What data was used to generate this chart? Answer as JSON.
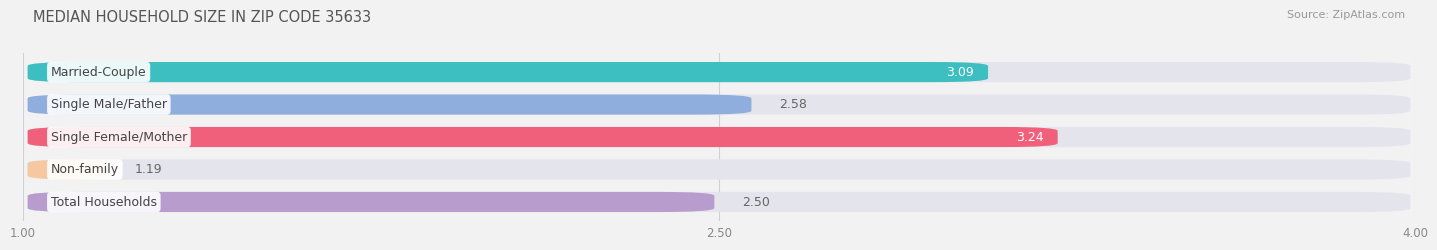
{
  "title": "MEDIAN HOUSEHOLD SIZE IN ZIP CODE 35633",
  "source": "Source: ZipAtlas.com",
  "categories": [
    "Married-Couple",
    "Single Male/Father",
    "Single Female/Mother",
    "Non-family",
    "Total Households"
  ],
  "values": [
    3.09,
    2.58,
    3.24,
    1.19,
    2.5
  ],
  "bar_colors": [
    "#3DBEC0",
    "#8FAEDE",
    "#F0607A",
    "#F5C8A0",
    "#B89CCE"
  ],
  "xlim": [
    1.0,
    4.0
  ],
  "xticks": [
    1.0,
    2.5,
    4.0
  ],
  "xtick_labels": [
    "1.00",
    "2.50",
    "4.00"
  ],
  "background_color": "#f2f2f2",
  "bar_background_color": "#e4e4ec",
  "title_fontsize": 10.5,
  "source_fontsize": 8,
  "label_fontsize": 9,
  "value_fontsize": 9,
  "bar_height": 0.62,
  "value_inside_threshold": 3.0,
  "value_inside_colors": [
    true,
    false,
    true,
    false,
    false
  ]
}
